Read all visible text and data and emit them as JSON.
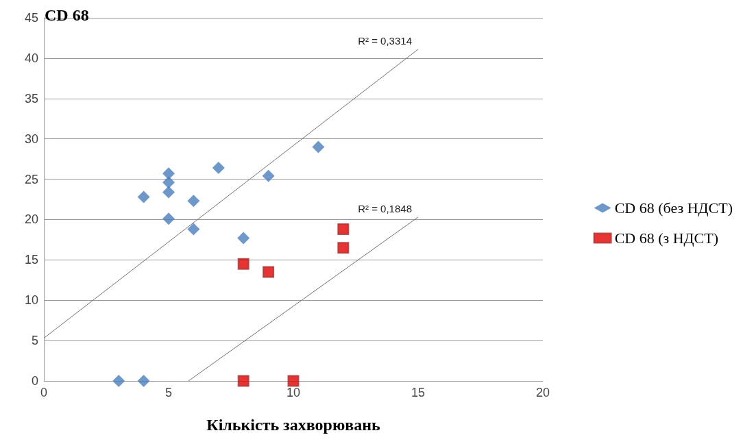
{
  "chart_data": {
    "type": "scatter",
    "title": "CD 68",
    "xlabel": "Кількість захворювань",
    "xlim": [
      0,
      20
    ],
    "xticks": [
      0,
      5,
      10,
      15,
      20
    ],
    "ylim": [
      0,
      45
    ],
    "yticks": [
      0,
      5,
      10,
      15,
      20,
      25,
      30,
      35,
      40,
      45
    ],
    "grid": "y",
    "legend": "right",
    "series": [
      {
        "name": "CD 68 (без НДСТ)",
        "color": "#4a7ebb",
        "marker": "diamond",
        "x": [
          3,
          4,
          4,
          5,
          5,
          5,
          5,
          6,
          6,
          7,
          8,
          9,
          11
        ],
        "values": [
          0,
          0,
          22.8,
          25.7,
          24.6,
          23.4,
          20.1,
          22.3,
          18.8,
          26.4,
          17.7,
          25.4,
          29
        ]
      },
      {
        "name": "CD 68 (з НДСТ)",
        "color": "#e00000",
        "marker": "square",
        "x": [
          8,
          9,
          12,
          12,
          8,
          10
        ],
        "values": [
          14.5,
          13.5,
          18.8,
          16.5,
          0,
          0
        ]
      },
      {
        "type": "line",
        "color": "#707070",
        "marker": "none",
        "x": [
          0,
          15
        ],
        "values": [
          5.3,
          41.1
        ]
      },
      {
        "type": "line",
        "color": "#707070",
        "marker": "none",
        "x": [
          5.8,
          15
        ],
        "values": [
          0,
          20.3
        ]
      }
    ],
    "annotations": [
      "R² = 0,3314",
      "R² = 0,1848"
    ]
  }
}
